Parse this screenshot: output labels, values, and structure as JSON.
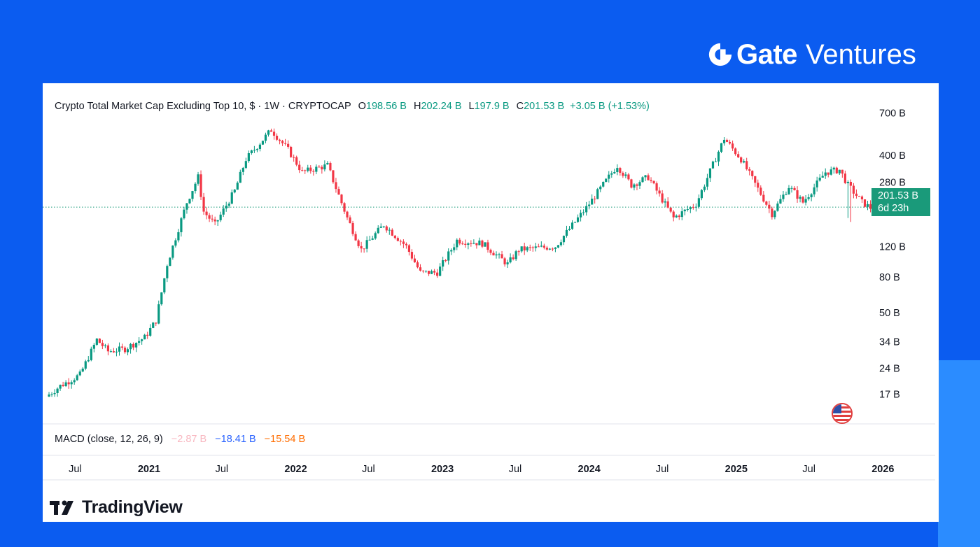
{
  "brand": {
    "name": "Gate",
    "sub": "Ventures"
  },
  "legend": {
    "title": "Crypto Total Market Cap Excluding Top 10, $ · 1W · CRYPTOCAP",
    "o_label": "O",
    "o_value": "198.56 B",
    "h_label": "H",
    "h_value": "202.24 B",
    "l_label": "L",
    "l_value": "197.9 B",
    "c_label": "C",
    "c_value": "201.53 B",
    "change": "+3.05 B (+1.53%)"
  },
  "price_tag": {
    "value": "201.53 B",
    "countdown": "6d 23h"
  },
  "macd": {
    "label": "MACD (close, 12, 26, 9)",
    "v1": "−2.87 B",
    "v2": "−18.41 B",
    "v3": "−15.54 B"
  },
  "watermark": {
    "name": "TradingView"
  },
  "colors": {
    "up": "#089981",
    "down": "#f23645",
    "background": "#0b5cf0"
  },
  "chart_data": {
    "type": "candlestick",
    "title": "Crypto Total Market Cap Excluding Top 10, $ · 1W · CRYPTOCAP",
    "y_scale": "log",
    "y_unit": "B",
    "y_ticks": [
      "700 B",
      "400 B",
      "280 B",
      "120 B",
      "80 B",
      "50 B",
      "34 B",
      "24 B",
      "17 B"
    ],
    "y_tick_values": [
      700,
      400,
      280,
      120,
      80,
      50,
      34,
      24,
      17
    ],
    "ylim": [
      11.5,
      750
    ],
    "x_ticks": [
      "Jul",
      "2021",
      "Jul",
      "2022",
      "Jul",
      "2023",
      "Jul",
      "2024",
      "Jul",
      "2025",
      "Jul",
      "2026"
    ],
    "x_tick_dates": [
      "2020-07-01",
      "2021-01-01",
      "2021-07-01",
      "2022-01-01",
      "2022-07-01",
      "2023-01-01",
      "2023-07-01",
      "2024-01-01",
      "2024-07-01",
      "2025-01-01",
      "2025-07-01",
      "2026-01-01"
    ],
    "bold_ticks": [
      "2021",
      "2022",
      "2023",
      "2024",
      "2025",
      "2026"
    ],
    "xlim": [
      "2020-04-20",
      "2026-04-01"
    ],
    "last_close": 201.53,
    "series_points": [
      [
        "2020-04-27",
        16.5
      ],
      [
        "2020-06-01",
        19
      ],
      [
        "2020-07-20",
        22
      ],
      [
        "2020-08-31",
        35
      ],
      [
        "2020-09-28",
        30
      ],
      [
        "2020-11-09",
        31
      ],
      [
        "2020-12-28",
        36
      ],
      [
        "2021-01-25",
        45
      ],
      [
        "2021-02-22",
        95
      ],
      [
        "2021-04-12",
        215
      ],
      [
        "2021-05-10",
        300
      ],
      [
        "2021-05-24",
        190
      ],
      [
        "2021-06-21",
        160
      ],
      [
        "2021-08-09",
        250
      ],
      [
        "2021-09-06",
        380
      ],
      [
        "2021-11-08",
        560
      ],
      [
        "2021-12-20",
        430
      ],
      [
        "2022-01-24",
        320
      ],
      [
        "2022-03-28",
        350
      ],
      [
        "2022-05-16",
        175
      ],
      [
        "2022-06-20",
        115
      ],
      [
        "2022-08-15",
        160
      ],
      [
        "2022-10-10",
        120
      ],
      [
        "2022-11-14",
        85
      ],
      [
        "2022-12-26",
        85
      ],
      [
        "2023-02-13",
        130
      ],
      [
        "2023-04-17",
        125
      ],
      [
        "2023-06-19",
        95
      ],
      [
        "2023-07-17",
        115
      ],
      [
        "2023-10-16",
        120
      ],
      [
        "2024-01-01",
        200
      ],
      [
        "2024-03-18",
        350
      ],
      [
        "2024-04-22",
        270
      ],
      [
        "2024-06-03",
        300
      ],
      [
        "2024-08-05",
        175
      ],
      [
        "2024-09-30",
        210
      ],
      [
        "2024-12-09",
        500
      ],
      [
        "2025-01-20",
        380
      ],
      [
        "2025-04-07",
        185
      ],
      [
        "2025-05-19",
        265
      ],
      [
        "2025-06-23",
        215
      ],
      [
        "2025-08-18",
        320
      ],
      [
        "2025-09-22",
        330
      ],
      [
        "2025-10-13",
        270
      ],
      [
        "2025-11-17",
        215
      ],
      [
        "2025-12-15",
        195
      ],
      [
        "2026-01-12",
        210
      ],
      [
        "2026-02-01",
        201.53
      ]
    ]
  }
}
